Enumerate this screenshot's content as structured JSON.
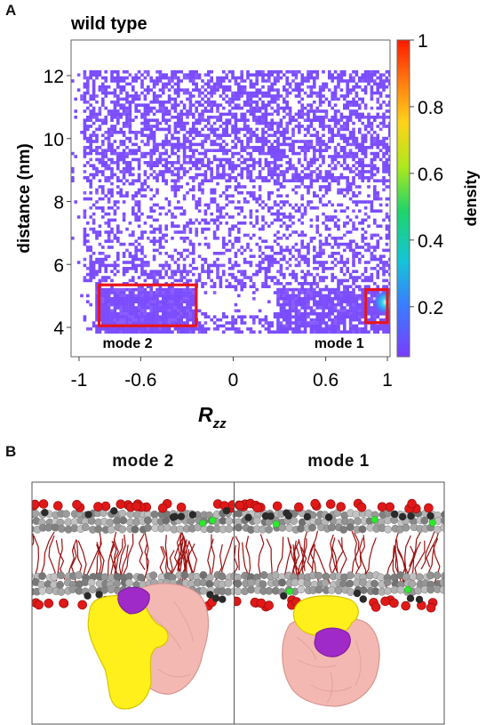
{
  "panel_a": {
    "letter": "A"
  },
  "panel_b": {
    "letter": "B",
    "snapshots": [
      {
        "title": "mode 2"
      },
      {
        "title": "mode 1"
      }
    ]
  },
  "colors": {
    "low": "#7b4dff",
    "mid": "#14c8d0",
    "high": "#ff1a00",
    "box": "#e8141c",
    "lipid_head": "#e01818",
    "lipid_gray": "#8a8a8a",
    "lipid_green": "#2ee82e",
    "tail": "#9a1010",
    "protein_yellow": "#ffef1a",
    "protein_pink": "#f3b5b0",
    "protein_purple": "#a028c8"
  },
  "chart_data": {
    "type": "heatmap",
    "title": "wild type",
    "xlabel": "R",
    "xlabel_subscript": "zz",
    "ylabel": "distance (nm)",
    "xlim": [
      -1,
      1
    ],
    "ylim": [
      3.5,
      13
    ],
    "xticks": [
      -1,
      -0.6,
      0,
      0.6,
      1
    ],
    "xtick_labels": [
      "-1",
      "-0.6",
      "0",
      "0.6",
      "1"
    ],
    "yticks": [
      4,
      6,
      8,
      10,
      12
    ],
    "ytick_labels": [
      "4",
      "6",
      "8",
      "10",
      "12"
    ],
    "colorbar": {
      "label": "density",
      "range": [
        0.05,
        1
      ],
      "ticks": [
        0.2,
        0.4,
        0.6,
        0.8,
        1
      ],
      "tick_labels": [
        "0.2",
        "0.4",
        "0.6",
        "0.8",
        "1"
      ]
    },
    "regions": [
      {
        "label": "mode 2",
        "x": [
          -0.87,
          -0.24
        ],
        "y": [
          4.05,
          5.35
        ]
      },
      {
        "label": "mode 1",
        "x": [
          0.86,
          1.0
        ],
        "y": [
          4.15,
          5.2
        ]
      }
    ],
    "density_peaks": [
      {
        "x": 0.99,
        "y": 4.8,
        "value": 0.25
      }
    ],
    "grid": false
  }
}
